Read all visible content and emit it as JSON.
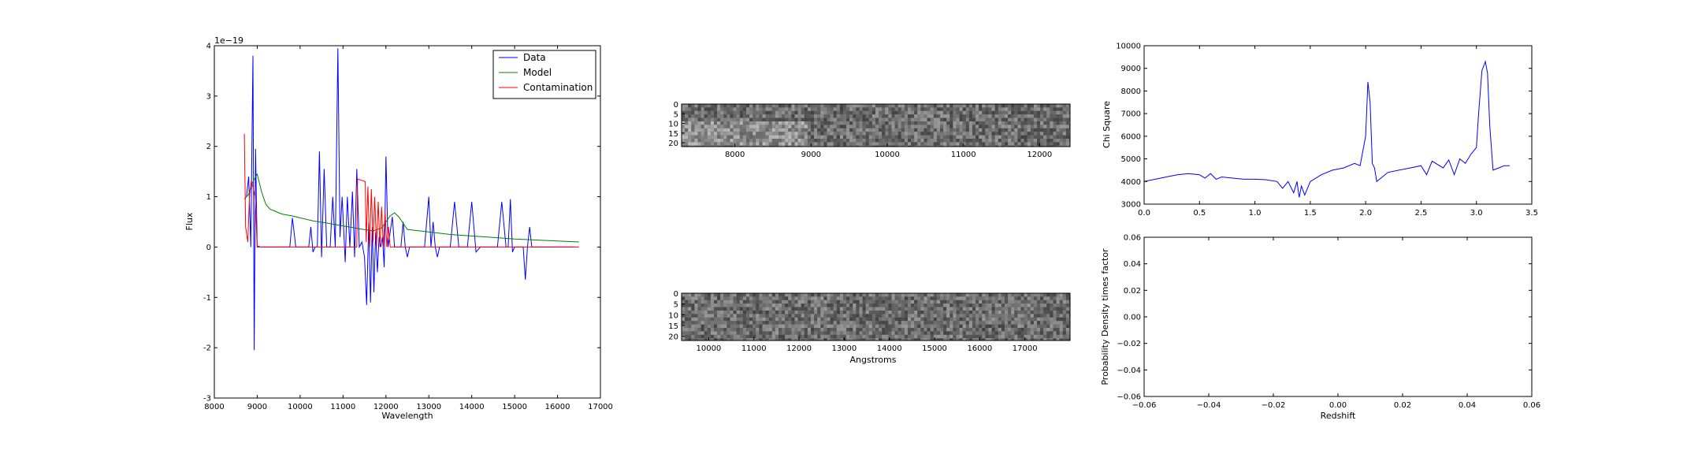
{
  "chart_data": [
    {
      "id": "spectrum",
      "type": "line",
      "xlabel": "Wavelength",
      "ylabel": "Flux",
      "scale_note": "1e−19",
      "xlim": [
        8000,
        17000
      ],
      "ylim": [
        -3,
        4
      ],
      "xticks": [
        8000,
        9000,
        10000,
        11000,
        12000,
        13000,
        14000,
        15000,
        16000,
        17000
      ],
      "yticks": [
        -3,
        -2,
        -1,
        0,
        1,
        2,
        3,
        4
      ],
      "legend_position": "top-right",
      "series": [
        {
          "name": "Data",
          "color": "#0000ff",
          "x": [
            8750,
            8800,
            8850,
            8900,
            8930,
            8960,
            9000,
            9030,
            9060,
            9100,
            9200,
            9400,
            9600,
            9700,
            9760,
            9820,
            9900,
            10000,
            10100,
            10200,
            10250,
            10300,
            10350,
            10400,
            10450,
            10500,
            10560,
            10620,
            10700,
            10760,
            10820,
            10880,
            10930,
            10980,
            11050,
            11100,
            11160,
            11220,
            11270,
            11320,
            11380,
            11440,
            11500,
            11550,
            11600,
            11640,
            11680,
            11720,
            11760,
            11800,
            11840,
            11880,
            11920,
            11960,
            12000,
            12050,
            12100,
            12150,
            12200,
            12250,
            12300,
            12350,
            12400,
            12450,
            12500,
            12550,
            12600,
            12650,
            12700,
            12750,
            12800,
            12900,
            13000,
            13050,
            13100,
            13150,
            13200,
            13250,
            13300,
            13400,
            13500,
            13600,
            13700,
            13800,
            13850,
            13900,
            14000,
            14100,
            14200,
            14300,
            14400,
            14500,
            14600,
            14700,
            14800,
            14850,
            14900,
            14950,
            15000,
            15100,
            15200,
            15250,
            15300,
            15350,
            15400,
            15600,
            16000,
            16400
          ],
          "y": [
            1.0,
            1.4,
            0.0,
            3.8,
            -2.05,
            1.95,
            0.0,
            0.02,
            0.0,
            0.0,
            0.0,
            0.0,
            0.0,
            0.0,
            0.0,
            0.58,
            0.0,
            0.0,
            0.0,
            0.0,
            0.4,
            -0.1,
            0.0,
            0.0,
            1.9,
            -0.2,
            1.55,
            0.0,
            0.0,
            1.0,
            0.0,
            3.95,
            0.2,
            1.0,
            -0.3,
            1.0,
            0.0,
            1.1,
            -0.2,
            1.55,
            0.0,
            0.1,
            -0.2,
            -1.15,
            0.5,
            -1.1,
            0.4,
            -0.9,
            0.3,
            -0.5,
            0.2,
            0.0,
            0.2,
            -0.4,
            1.8,
            0.0,
            0.3,
            0.6,
            0.0,
            0.0,
            0.0,
            0.0,
            0.5,
            0.0,
            -0.2,
            0.0,
            0.0,
            0.0,
            0.0,
            0.0,
            0.0,
            0.0,
            1.0,
            0.0,
            0.5,
            0.0,
            -0.2,
            0.0,
            0.0,
            0.0,
            0.0,
            0.9,
            0.0,
            0.0,
            0.0,
            0.0,
            0.9,
            -0.1,
            0.0,
            0.0,
            0.0,
            0.0,
            0.0,
            0.9,
            0.0,
            0.0,
            0.95,
            -0.1,
            0.0,
            0.0,
            0.0,
            -0.65,
            0.0,
            0.4,
            0.0,
            0.0,
            0.0,
            0.0
          ]
        },
        {
          "name": "Model",
          "color": "#008000",
          "x": [
            8700,
            8800,
            8900,
            9000,
            9100,
            9200,
            9300,
            9400,
            9500,
            9600,
            9800,
            10000,
            10300,
            10600,
            11000,
            11400,
            11700,
            11900,
            12000,
            12100,
            12200,
            12300,
            12500,
            13000,
            13500,
            14000,
            14500,
            15000,
            15500,
            16000,
            16500
          ],
          "y": [
            0.95,
            1.05,
            1.3,
            1.45,
            1.1,
            0.85,
            0.75,
            0.72,
            0.68,
            0.65,
            0.62,
            0.58,
            0.52,
            0.48,
            0.42,
            0.36,
            0.32,
            0.38,
            0.5,
            0.62,
            0.68,
            0.6,
            0.35,
            0.3,
            0.25,
            0.22,
            0.19,
            0.16,
            0.14,
            0.12,
            0.1
          ]
        },
        {
          "name": "Contamination",
          "color": "#ff0000",
          "x": [
            8700,
            8730,
            8780,
            8820,
            8860,
            8900,
            8950,
            9000,
            9050,
            9100,
            9500,
            10000,
            11000,
            11200,
            11320,
            11340,
            11520,
            11540,
            11580,
            11620,
            11660,
            11700,
            11740,
            11780,
            11820,
            11860,
            11900,
            11940,
            11980,
            12020,
            12060,
            12100,
            12200,
            12400,
            13000,
            14000,
            15000,
            16500
          ],
          "y": [
            2.25,
            0.4,
            0.1,
            1.0,
            1.3,
            1.2,
            1.0,
            0.0,
            0.0,
            0.0,
            0.0,
            0.0,
            0.0,
            0.0,
            0.0,
            1.35,
            1.3,
            0.1,
            1.2,
            0.0,
            1.15,
            0.1,
            1.0,
            0.0,
            0.9,
            0.0,
            0.8,
            0.0,
            0.7,
            0.0,
            0.4,
            0.0,
            0.0,
            0.0,
            0.0,
            0.0,
            0.0,
            0.0
          ]
        }
      ]
    },
    {
      "id": "image-strip-1",
      "type": "heatmap",
      "xlim": [
        7300,
        12400
      ],
      "ylim": [
        0,
        22
      ],
      "xticks": [
        8000,
        9000,
        10000,
        11000,
        12000
      ],
      "yticks": [
        0,
        5,
        10,
        15,
        20
      ]
    },
    {
      "id": "image-strip-2",
      "type": "heatmap",
      "xlabel": "Angstroms",
      "xlim": [
        9400,
        18000
      ],
      "ylim": [
        0,
        22
      ],
      "xticks": [
        10000,
        11000,
        12000,
        13000,
        14000,
        15000,
        16000,
        17000
      ],
      "yticks": [
        0,
        5,
        10,
        15,
        20
      ]
    },
    {
      "id": "chi-square",
      "type": "line",
      "ylabel": "Chi Square",
      "xlim": [
        0.0,
        3.5
      ],
      "ylim": [
        3000,
        10000
      ],
      "xticks": [
        "0.0",
        "0.5",
        "1.0",
        "1.5",
        "2.0",
        "2.5",
        "3.0",
        "3.5"
      ],
      "yticks": [
        3000,
        4000,
        5000,
        6000,
        7000,
        8000,
        9000,
        10000
      ],
      "series": [
        {
          "color": "#0000ff",
          "x": [
            0.0,
            0.1,
            0.2,
            0.3,
            0.4,
            0.5,
            0.55,
            0.6,
            0.65,
            0.7,
            0.8,
            0.9,
            1.0,
            1.1,
            1.2,
            1.25,
            1.3,
            1.35,
            1.38,
            1.4,
            1.42,
            1.45,
            1.5,
            1.6,
            1.7,
            1.8,
            1.9,
            1.95,
            2.0,
            2.02,
            2.04,
            2.06,
            2.08,
            2.1,
            2.2,
            2.3,
            2.4,
            2.5,
            2.55,
            2.6,
            2.7,
            2.75,
            2.8,
            2.85,
            2.9,
            2.95,
            3.0,
            3.02,
            3.05,
            3.08,
            3.1,
            3.12,
            3.15,
            3.2,
            3.25,
            3.3
          ],
          "y": [
            4000,
            4100,
            4200,
            4300,
            4350,
            4300,
            4150,
            4350,
            4100,
            4200,
            4150,
            4100,
            4100,
            4080,
            4000,
            3700,
            4000,
            3500,
            4000,
            3300,
            3800,
            3400,
            4000,
            4300,
            4500,
            4600,
            4800,
            4700,
            6000,
            8400,
            7500,
            4800,
            4600,
            4000,
            4400,
            4500,
            4600,
            4700,
            4300,
            4900,
            4600,
            4950,
            4300,
            5000,
            4800,
            5200,
            5500,
            7000,
            8900,
            9300,
            8800,
            6500,
            4500,
            4600,
            4700,
            4700
          ]
        }
      ]
    },
    {
      "id": "probability",
      "type": "line",
      "xlabel": "Redshift",
      "ylabel": "Probability Density times factor",
      "xlim": [
        -0.06,
        0.06
      ],
      "ylim": [
        -0.06,
        0.06
      ],
      "xticks": [
        "−0.06",
        "−0.04",
        "−0.02",
        "0.00",
        "0.02",
        "0.04",
        "0.06"
      ],
      "yticks": [
        "−0.06",
        "−0.04",
        "−0.02",
        "0.00",
        "0.02",
        "0.04",
        "0.06"
      ],
      "series": []
    }
  ]
}
